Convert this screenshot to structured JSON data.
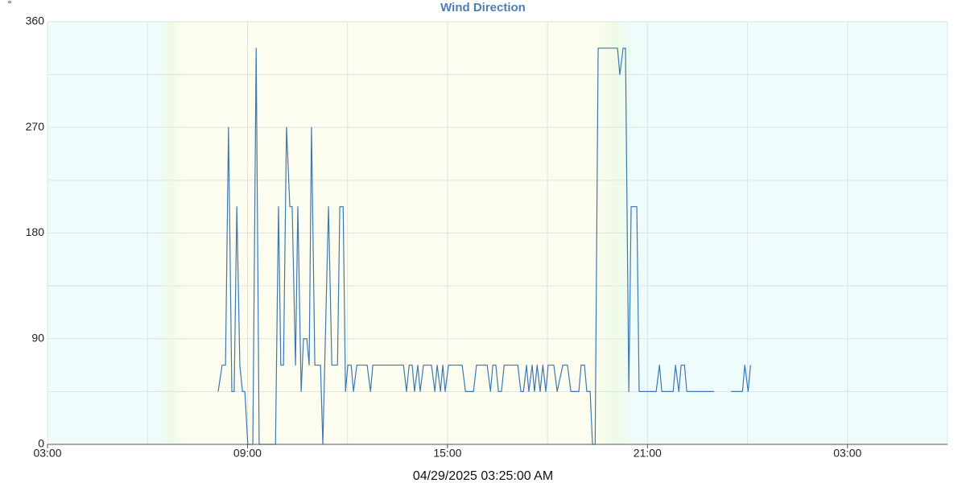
{
  "chart_data": {
    "type": "line",
    "title": "Wind Direction",
    "y_unit": "°",
    "subtitle": "04/29/2025 03:25:00 AM",
    "xlim": [
      3,
      30
    ],
    "xticks": [
      {
        "value": 3,
        "label": "03:00"
      },
      {
        "value": 9,
        "label": "09:00"
      },
      {
        "value": 15,
        "label": "15:00"
      },
      {
        "value": 21,
        "label": "21:00"
      },
      {
        "value": 27,
        "label": "03:00"
      }
    ],
    "xminor": [
      6,
      12,
      18,
      24,
      30
    ],
    "ylim": [
      0,
      360
    ],
    "yticks": [
      0,
      90,
      180,
      270,
      360
    ],
    "yminor": [
      45,
      135,
      225,
      315
    ],
    "grid": true,
    "series": [
      {
        "name": "Wind Direction",
        "color": "#3b78b4",
        "x": [
          8.12,
          8.24,
          8.34,
          8.43,
          8.53,
          8.6,
          8.68,
          8.77,
          8.85,
          8.92,
          9.01,
          9.16,
          9.26,
          9.35,
          9.84,
          9.93,
          10.0,
          10.08,
          10.17,
          10.27,
          10.34,
          10.44,
          10.51,
          10.61,
          10.68,
          10.78,
          10.85,
          10.92,
          11.02,
          11.19,
          11.26,
          11.43,
          11.53,
          11.7,
          11.77,
          11.87,
          11.94,
          12.01,
          12.11,
          12.18,
          12.28,
          12.59,
          12.69,
          12.76,
          13.68,
          13.77,
          13.85,
          13.94,
          14.01,
          14.11,
          14.18,
          14.28,
          14.52,
          14.62,
          14.69,
          14.79,
          14.86,
          14.93,
          15.03,
          15.44,
          15.54,
          15.78,
          15.87,
          16.19,
          16.29,
          16.36,
          16.45,
          16.53,
          16.62,
          16.7,
          17.11,
          17.2,
          17.28,
          17.37,
          17.44,
          17.54,
          17.61,
          17.69,
          17.78,
          17.86,
          17.95,
          18.02,
          18.19,
          18.29,
          18.46,
          18.6,
          18.7,
          18.94,
          19.01,
          19.11,
          19.18,
          19.28,
          19.35,
          19.43,
          19.52,
          20.1,
          20.17,
          20.27,
          20.34,
          20.44,
          20.51,
          20.68,
          20.75,
          21.26,
          21.36,
          21.43,
          21.77,
          21.84,
          21.94,
          22.01,
          22.11,
          22.18,
          23.0,
          23.25,
          23.51,
          23.85,
          23.92,
          24.02,
          24.09
        ],
        "values": [
          45,
          67.5,
          67.5,
          270,
          45,
          45,
          202.5,
          67.5,
          45,
          45,
          0,
          0,
          337.5,
          0,
          0,
          202.5,
          67.5,
          67.5,
          270,
          202.5,
          202.5,
          67.5,
          202.5,
          45,
          90,
          90,
          67.5,
          270,
          67.5,
          67.5,
          0,
          202.5,
          67.5,
          67.5,
          202.5,
          202.5,
          45,
          67.5,
          67.5,
          45,
          67.5,
          67.5,
          45,
          67.5,
          67.5,
          45,
          67.5,
          67.5,
          45,
          67.5,
          45,
          67.5,
          67.5,
          45,
          67.5,
          45,
          67.5,
          45,
          67.5,
          67.5,
          45,
          45,
          67.5,
          67.5,
          45,
          67.5,
          67.5,
          45,
          45,
          67.5,
          67.5,
          45,
          45,
          67.5,
          45,
          67.5,
          45,
          67.5,
          45,
          67.5,
          45,
          67.5,
          67.5,
          45,
          67.5,
          67.5,
          45,
          45,
          67.5,
          67.5,
          45,
          45,
          0,
          0,
          337.5,
          337.5,
          315,
          337.5,
          337.5,
          45,
          202.5,
          202.5,
          45,
          45,
          67.5,
          45,
          45,
          67.5,
          45,
          67.5,
          67.5,
          45,
          45,
          null,
          45,
          45,
          67.5,
          45,
          67.5
        ]
      }
    ]
  }
}
